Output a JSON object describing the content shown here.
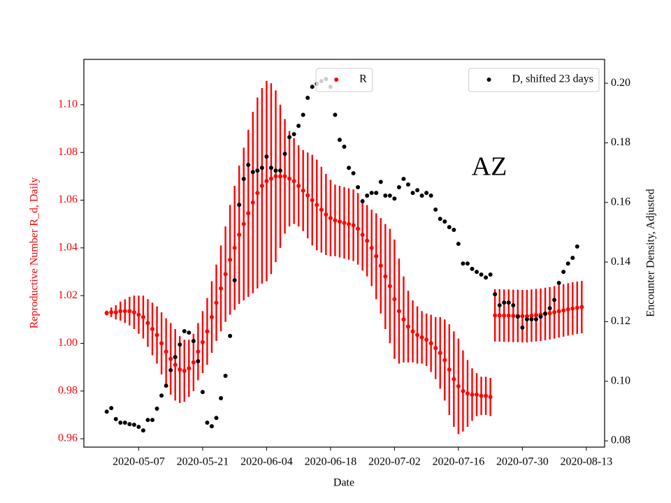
{
  "chart_data": {
    "type": "scatter",
    "annotation": "AZ",
    "xlabel": "Date",
    "ylabel": "Reproductive Number R_d, Daily",
    "y2label": "Encounter Density, Adjusted",
    "ylabel_color": "red",
    "xlim": [
      "2020-04-25",
      "2020-08-17"
    ],
    "xticks": [
      "2020-05-07",
      "2020-05-21",
      "2020-06-04",
      "2020-06-18",
      "2020-07-02",
      "2020-07-16",
      "2020-07-30",
      "2020-08-13"
    ],
    "ylim": [
      0.9565,
      1.119
    ],
    "yticks": [
      0.96,
      0.98,
      {
        "value": 1,
        "label": "1.00"
      },
      1.02,
      1.04,
      1.06,
      1.08,
      {
        "value": 1.1,
        "label": "1.10"
      }
    ],
    "y2lim": [
      0.0779,
      0.208
    ],
    "y2ticks": [
      0.08,
      {
        "value": 0.1,
        "label": "0.10"
      },
      0.12,
      0.14,
      0.16,
      0.18,
      {
        "value": 0.2,
        "label": "0.20"
      }
    ],
    "x": [
      "2020-04-30",
      "2020-05-01",
      "2020-05-02",
      "2020-05-03",
      "2020-05-04",
      "2020-05-05",
      "2020-05-06",
      "2020-05-07",
      "2020-05-08",
      "2020-05-09",
      "2020-05-10",
      "2020-05-11",
      "2020-05-12",
      "2020-05-13",
      "2020-05-14",
      "2020-05-15",
      "2020-05-16",
      "2020-05-17",
      "2020-05-18",
      "2020-05-19",
      "2020-05-20",
      "2020-05-21",
      "2020-05-22",
      "2020-05-23",
      "2020-05-24",
      "2020-05-25",
      "2020-05-26",
      "2020-05-27",
      "2020-05-28",
      "2020-05-29",
      "2020-05-30",
      "2020-05-31",
      "2020-06-01",
      "2020-06-02",
      "2020-06-03",
      "2020-06-04",
      "2020-06-05",
      "2020-06-06",
      "2020-06-07",
      "2020-06-08",
      "2020-06-09",
      "2020-06-10",
      "2020-06-11",
      "2020-06-12",
      "2020-06-13",
      "2020-06-14",
      "2020-06-15",
      "2020-06-16",
      "2020-06-17",
      "2020-06-18",
      "2020-06-19",
      "2020-06-20",
      "2020-06-21",
      "2020-06-22",
      "2020-06-23",
      "2020-06-24",
      "2020-06-25",
      "2020-06-26",
      "2020-06-27",
      "2020-06-28",
      "2020-06-29",
      "2020-06-30",
      "2020-07-01",
      "2020-07-02",
      "2020-07-03",
      "2020-07-04",
      "2020-07-05",
      "2020-07-06",
      "2020-07-07",
      "2020-07-08",
      "2020-07-09",
      "2020-07-10",
      "2020-07-11",
      "2020-07-12",
      "2020-07-13",
      "2020-07-14",
      "2020-07-15",
      "2020-07-16",
      "2020-07-17",
      "2020-07-18",
      "2020-07-19",
      "2020-07-20",
      "2020-07-21",
      "2020-07-22",
      "2020-07-23",
      "2020-07-24",
      "2020-07-25",
      "2020-07-26",
      "2020-07-27",
      "2020-07-28",
      "2020-07-29",
      "2020-07-30",
      "2020-07-31",
      "2020-08-01",
      "2020-08-02",
      "2020-08-03",
      "2020-08-04",
      "2020-08-05",
      "2020-08-06",
      "2020-08-07",
      "2020-08-08",
      "2020-08-09",
      "2020-08-10",
      "2020-08-11",
      "2020-08-12"
    ],
    "series": [
      {
        "name": "R",
        "color": "red",
        "axis": "y",
        "legend_loc": "upper center",
        "values": [
          1.0127,
          1.013,
          1.013,
          1.0135,
          1.0135,
          1.0135,
          1.013,
          1.012,
          1.011,
          1.0085,
          1.006,
          1.0035,
          1.0,
          0.9965,
          0.9935,
          0.991,
          0.989,
          0.9885,
          0.9895,
          0.992,
          0.9965,
          1.0005,
          1.005,
          1.011,
          1.017,
          1.023,
          1.029,
          1.035,
          1.04,
          1.0455,
          1.05,
          1.0545,
          1.059,
          1.063,
          1.066,
          1.068,
          1.069,
          1.07,
          1.07,
          1.07,
          1.069,
          1.068,
          1.066,
          1.064,
          1.062,
          1.06,
          1.058,
          1.056,
          1.054,
          1.0525,
          1.0515,
          1.051,
          1.0505,
          1.05,
          1.0495,
          1.048,
          1.0455,
          1.043,
          1.04,
          1.0365,
          1.0325,
          1.028,
          1.024,
          1.0185,
          1.0135,
          1.01,
          1.007,
          1.005,
          1.0035,
          1.0025,
          1.0015,
          1.0,
          0.998,
          0.996,
          0.993,
          0.989,
          0.985,
          0.982,
          0.98,
          0.979,
          0.9785,
          0.9785,
          0.978,
          0.978,
          0.9775,
          1.0117,
          1.0117,
          1.0116,
          1.0116,
          1.0115,
          1.0115,
          1.0114,
          1.0114,
          1.0116,
          1.0118,
          1.012,
          1.0123,
          1.0126,
          1.013,
          1.0134,
          1.0138,
          1.0142,
          1.0146,
          1.0149,
          1.0152
        ],
        "errors": [
          0.001,
          0.002,
          0.003,
          0.004,
          0.005,
          0.006,
          0.007,
          0.008,
          0.009,
          0.01,
          0.011,
          0.012,
          0.013,
          0.014,
          0.015,
          0.015,
          0.014,
          0.013,
          0.012,
          0.012,
          0.012,
          0.013,
          0.014,
          0.015,
          0.016,
          0.018,
          0.02,
          0.023,
          0.026,
          0.029,
          0.032,
          0.035,
          0.038,
          0.04,
          0.041,
          0.042,
          0.04,
          0.036,
          0.03,
          0.024,
          0.02,
          0.018,
          0.017,
          0.017,
          0.018,
          0.019,
          0.019,
          0.018,
          0.017,
          0.016,
          0.015,
          0.015,
          0.015,
          0.015,
          0.015,
          0.015,
          0.015,
          0.015,
          0.016,
          0.018,
          0.02,
          0.022,
          0.024,
          0.025,
          0.022,
          0.018,
          0.015,
          0.013,
          0.012,
          0.011,
          0.011,
          0.012,
          0.013,
          0.015,
          0.017,
          0.019,
          0.02,
          0.02,
          0.017,
          0.014,
          0.011,
          0.009,
          0.008,
          0.008,
          0.008,
          0.011,
          0.011,
          0.011,
          0.011,
          0.011,
          0.011,
          0.011,
          0.011,
          0.011,
          0.011,
          0.011,
          0.011,
          0.011,
          0.011,
          0.011,
          0.011,
          0.011,
          0.011,
          0.011,
          0.011
        ]
      },
      {
        "name": "D, shifted 23 days",
        "color": "black",
        "axis": "y2",
        "legend_loc": "upper right",
        "values": [
          0.0898,
          0.091,
          0.0873,
          0.0861,
          0.0861,
          0.0856,
          0.0854,
          0.0847,
          0.0835,
          0.087,
          0.087,
          0.0908,
          0.0952,
          0.0985,
          0.1037,
          0.1081,
          0.1123,
          0.1168,
          0.1163,
          0.1135,
          0.1067,
          0.0964,
          0.0861,
          0.0849,
          0.0877,
          0.0943,
          0.1018,
          0.1152,
          0.1339,
          0.1592,
          0.1679,
          0.1726,
          0.1702,
          0.1707,
          0.1716,
          0.1754,
          0.1716,
          0.1707,
          0.1707,
          0.1763,
          0.1819,
          0.1829,
          0.1857,
          0.1894,
          0.1951,
          0.1988,
          0.1998,
          0.2007,
          0.2014,
          0.1988,
          0.1894,
          0.181,
          0.1787,
          0.1716,
          0.1698,
          0.1651,
          0.1604,
          0.1623,
          0.1632,
          0.1632,
          0.1669,
          0.1623,
          0.1623,
          0.1613,
          0.1651,
          0.1679,
          0.166,
          0.1632,
          0.1641,
          0.1623,
          0.1632,
          0.1623,
          0.1576,
          0.1545,
          0.1536,
          0.1517,
          0.1508,
          0.1461,
          0.1395,
          0.1395,
          0.1377,
          0.1367,
          0.1358,
          0.1348,
          0.1358,
          0.1292,
          0.1255,
          0.1264,
          0.1264,
          0.1255,
          0.1217,
          0.118,
          0.1208,
          0.1208,
          0.1208,
          0.1217,
          0.1227,
          0.1245,
          0.1273,
          0.133,
          0.1367,
          0.1395,
          0.1414,
          0.1452,
          null
        ]
      }
    ]
  }
}
